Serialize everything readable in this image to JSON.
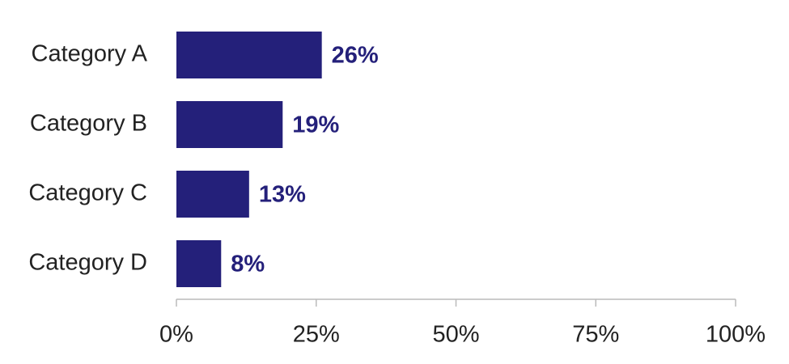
{
  "chart_data": {
    "type": "bar",
    "orientation": "horizontal",
    "categories": [
      "Category A",
      "Category B",
      "Category C",
      "Category D"
    ],
    "values": [
      26,
      19,
      13,
      8
    ],
    "value_labels": [
      "26%",
      "19%",
      "13%",
      "8%"
    ],
    "color": "#24207a",
    "xlim": [
      0,
      100
    ],
    "xticks": [
      {
        "value": 0,
        "label": "0%"
      },
      {
        "value": 25,
        "label": "25%"
      },
      {
        "value": 50,
        "label": "50%"
      },
      {
        "value": 75,
        "label": "75%"
      },
      {
        "value": 100,
        "label": "100%"
      }
    ]
  }
}
